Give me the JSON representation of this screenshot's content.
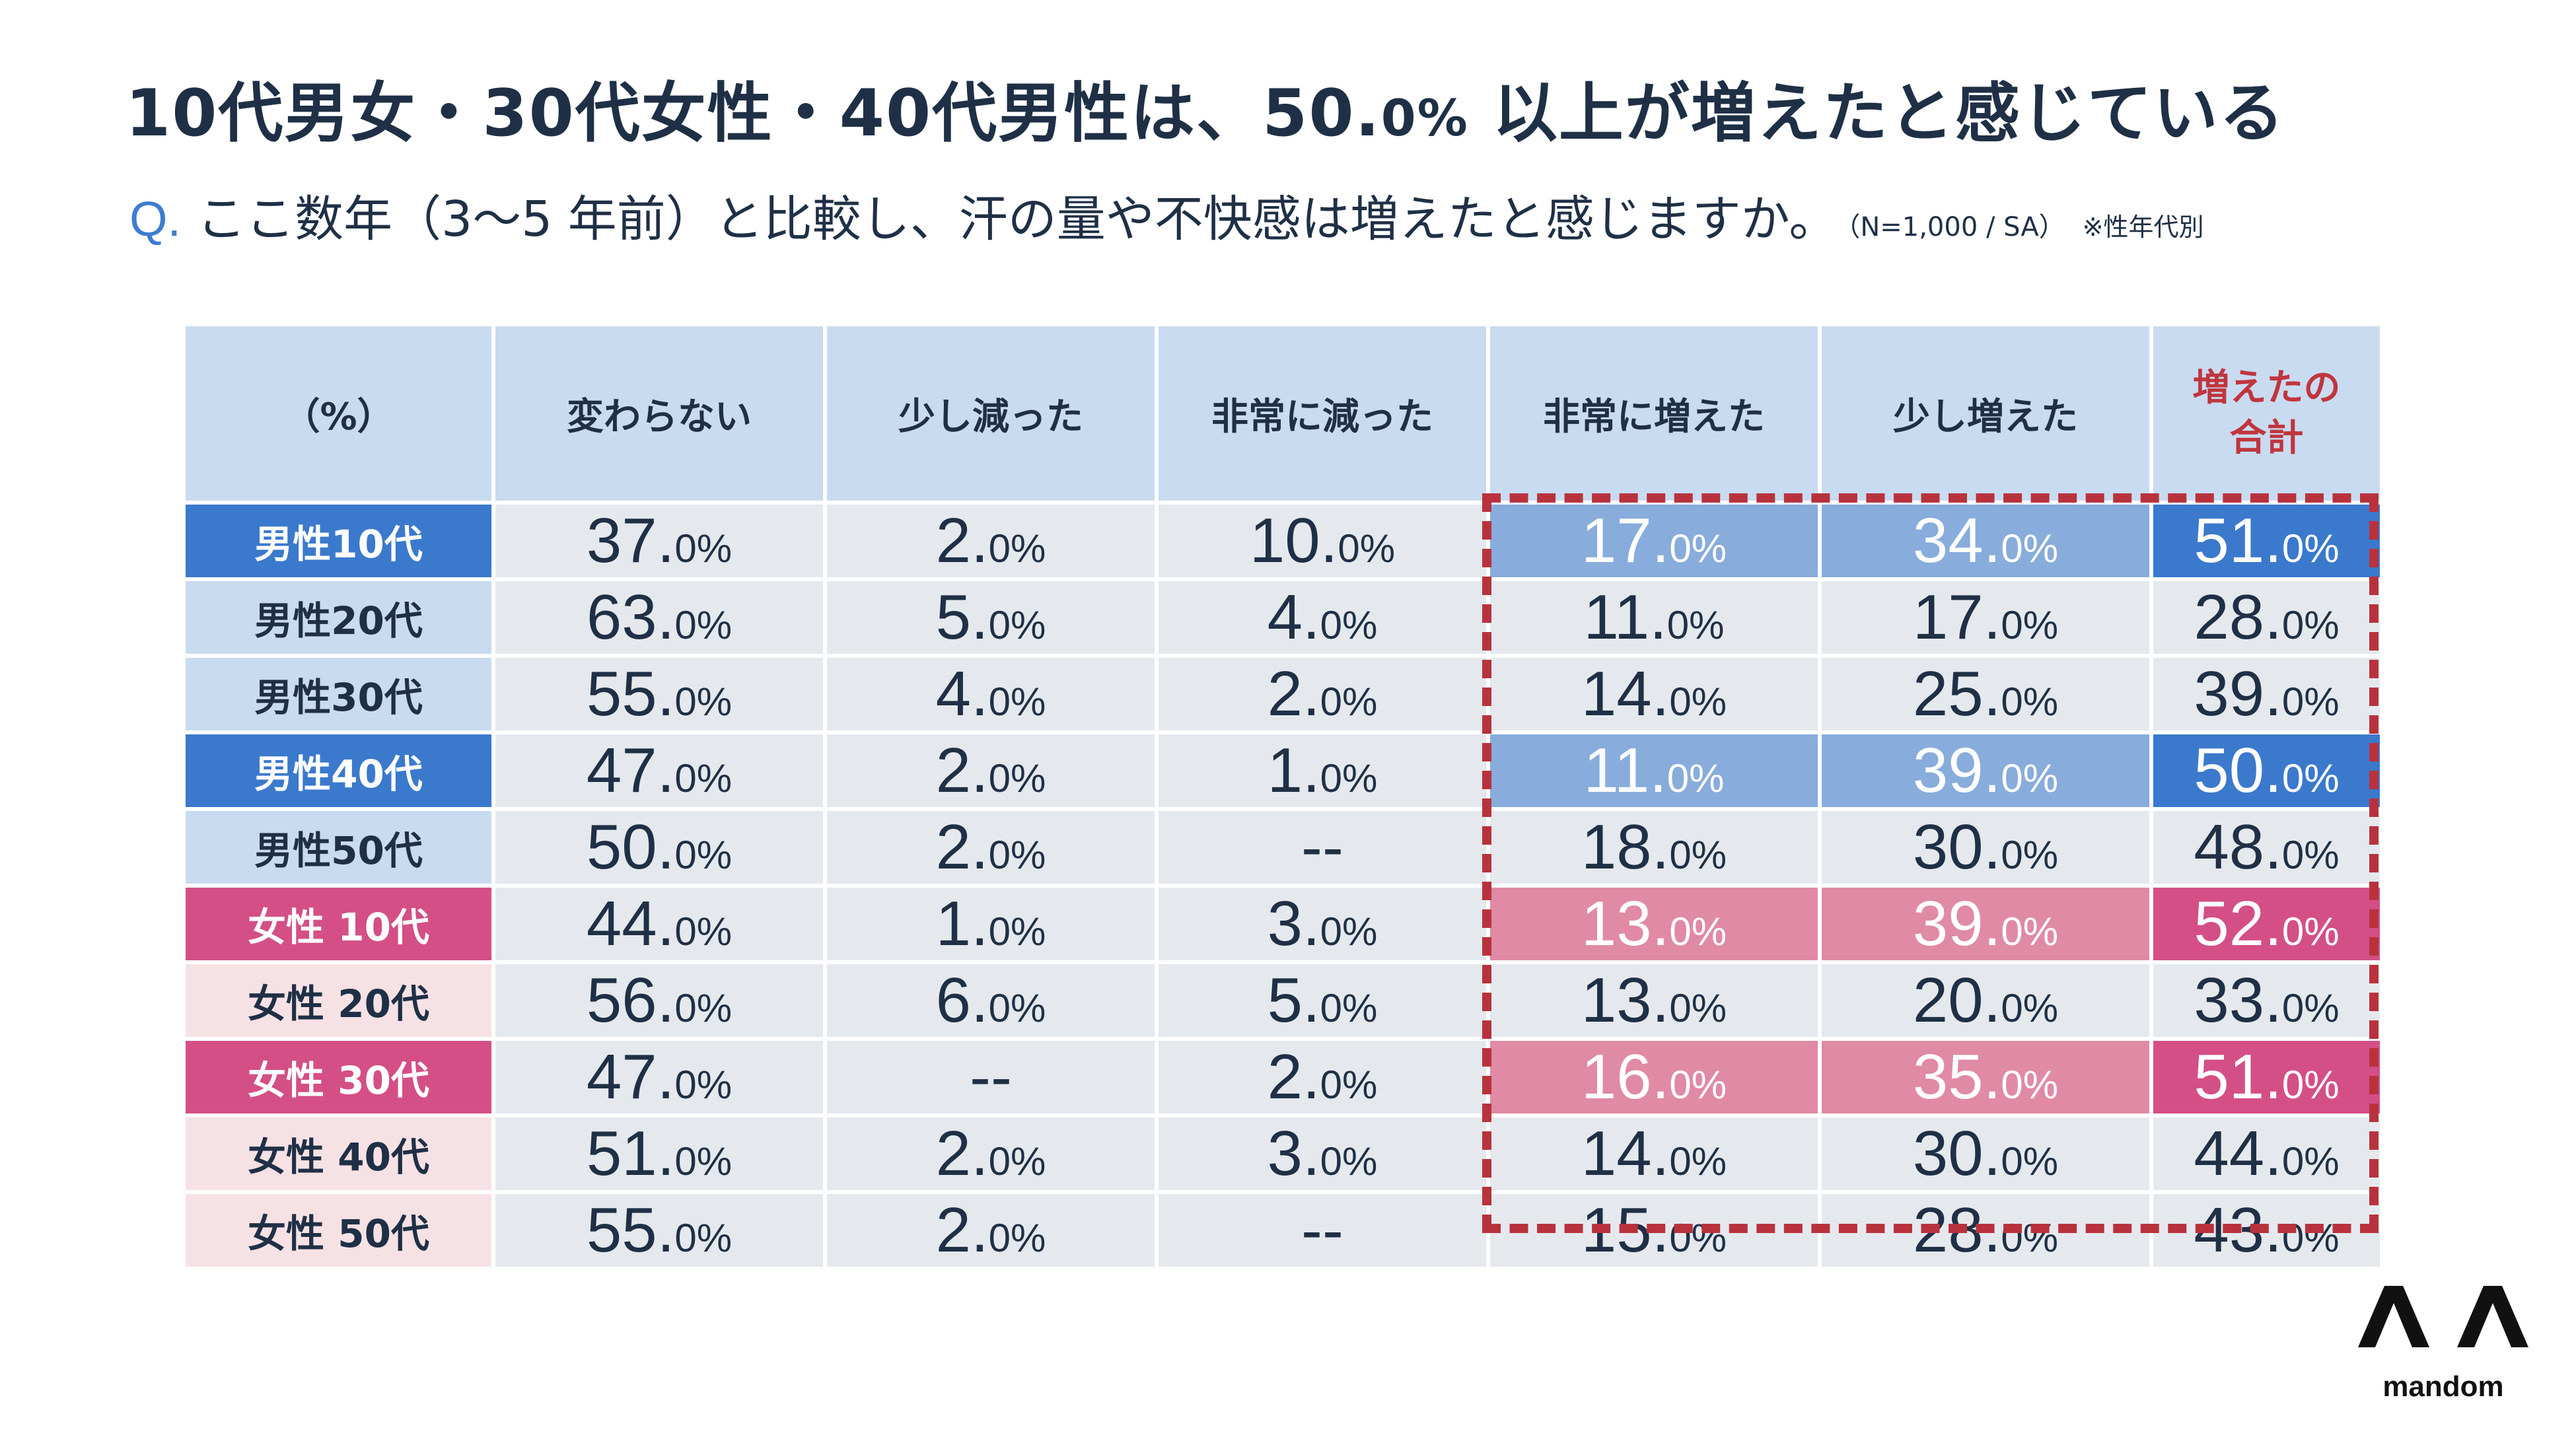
{
  "header": {
    "title_main": "10代男女・30代女性・40代男性は、50.",
    "title_pct": "0%",
    "title_rest": "以上が増えたと感じている",
    "question_mark": "Q.",
    "question_text": "ここ数年（3〜5 年前）と比較し、汗の量や不快感は増えたと感じますか。",
    "question_note": "（N=1,000 / SA）",
    "question_note2": "※性年代別"
  },
  "logo": {
    "icon": "mandom-logo-icon",
    "text": "mandom"
  },
  "colors": {
    "header_bg": "#c9dbf0",
    "cell_bg": "#e5e9ed",
    "male_highlight": "#3b79cc",
    "male_highlight_light": "#88acdb",
    "female_highlight": "#d44f86",
    "female_highlight_light": "#e08aa5",
    "female_label_bg": "#f6e1e4",
    "total_header": "#c0353e",
    "dashed_box": "#b8323d",
    "text": "#1f3046"
  },
  "chart_data": {
    "type": "table",
    "columns": [
      "（%）",
      "変わらない",
      "少し減った",
      "非常に減った",
      "非常に増えた",
      "少し増えた",
      "増えたの\n合計"
    ],
    "unit": "%",
    "rows": [
      {
        "label": "男性10代",
        "values": [
          "37.0",
          "2.0",
          "10.0",
          "17.0",
          "34.0",
          "51.0"
        ],
        "highlight": "male"
      },
      {
        "label": "男性20代",
        "values": [
          "63.0",
          "5.0",
          "4.0",
          "11.0",
          "17.0",
          "28.0"
        ],
        "highlight": "none"
      },
      {
        "label": "男性30代",
        "values": [
          "55.0",
          "4.0",
          "2.0",
          "14.0",
          "25.0",
          "39.0"
        ],
        "highlight": "none"
      },
      {
        "label": "男性40代",
        "values": [
          "47.0",
          "2.0",
          "1.0",
          "11.0",
          "39.0",
          "50.0"
        ],
        "highlight": "male"
      },
      {
        "label": "男性50代",
        "values": [
          "50.0",
          "2.0",
          "--",
          "18.0",
          "30.0",
          "48.0"
        ],
        "highlight": "none"
      },
      {
        "label": "女性 10代",
        "values": [
          "44.0",
          "1.0",
          "3.0",
          "13.0",
          "39.0",
          "52.0"
        ],
        "highlight": "female"
      },
      {
        "label": "女性 20代",
        "values": [
          "56.0",
          "6.0",
          "5.0",
          "13.0",
          "20.0",
          "33.0"
        ],
        "highlight": "none"
      },
      {
        "label": "女性 30代",
        "values": [
          "47.0",
          "--",
          "2.0",
          "16.0",
          "35.0",
          "51.0"
        ],
        "highlight": "female"
      },
      {
        "label": "女性 40代",
        "values": [
          "51.0",
          "2.0",
          "3.0",
          "14.0",
          "30.0",
          "44.0"
        ],
        "highlight": "none"
      },
      {
        "label": "女性 50代",
        "values": [
          "55.0",
          "2.0",
          "--",
          "15.0",
          "28.0",
          "43.0"
        ],
        "highlight": "none"
      }
    ]
  }
}
